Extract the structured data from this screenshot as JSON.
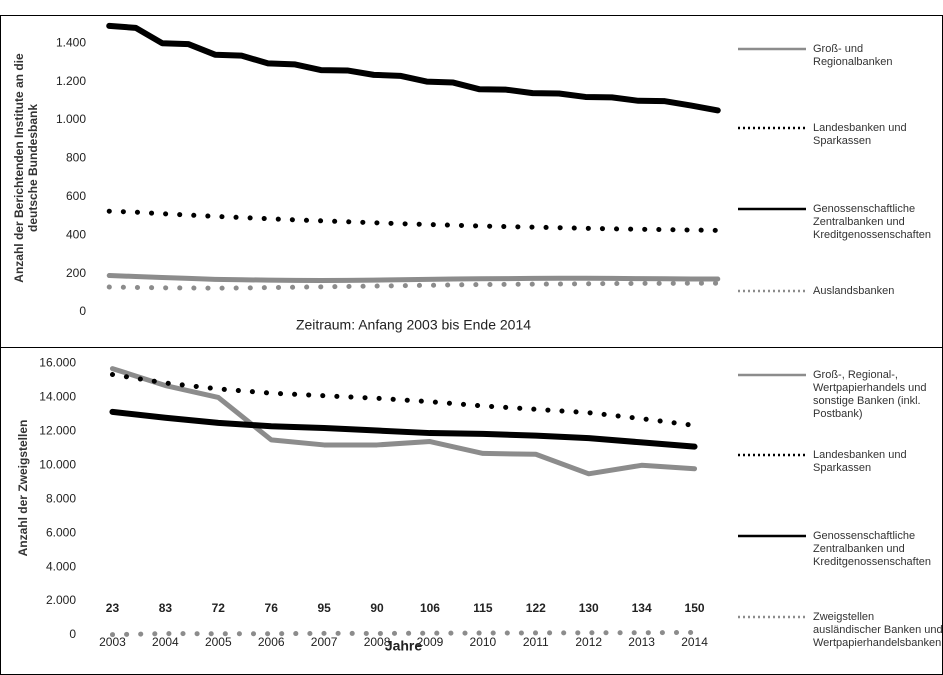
{
  "chart_data": [
    {
      "type": "line",
      "ylabel": "Anzahl der Berichtenden Institute an die deutsche Bundesbank",
      "xlabel": "Zeitraum: Anfang 2003 bis Ende 2014",
      "categories": [
        null,
        null,
        null,
        null,
        null,
        null,
        null,
        null,
        null,
        null,
        null,
        null,
        null,
        null,
        null,
        null,
        null,
        null,
        null,
        null,
        null,
        null,
        null,
        null
      ],
      "ylim": [
        0,
        1500
      ],
      "yticks": [
        0,
        200,
        400,
        600,
        800,
        {
          "value": 1000,
          "label": "1.000"
        },
        {
          "value": 1200,
          "label": "1.200"
        },
        {
          "value": 1400,
          "label": "1.400"
        }
      ],
      "series": [
        {
          "name": "Groß- und Regionalbanken",
          "color": "#8c8c8c",
          "style": "solid",
          "values": [
            190,
            185,
            180,
            175,
            170,
            168,
            166,
            165,
            164,
            165,
            166,
            168,
            170,
            172,
            173,
            174,
            175,
            176,
            176,
            175,
            174,
            173,
            172,
            172
          ]
        },
        {
          "name": "Landesbanken und Sparkassen",
          "color": "#000000",
          "style": "dotted",
          "values": [
            525,
            520,
            512,
            505,
            498,
            492,
            486,
            480,
            475,
            470,
            465,
            460,
            456,
            452,
            448,
            445,
            442,
            439,
            436,
            433,
            431,
            429,
            427,
            425
          ]
        },
        {
          "name": "Genossenschaftliche Zentralbanken und Kreditgenossenschaften",
          "color": "#000000",
          "style": "solid",
          "values": [
            1490,
            1480,
            1400,
            1395,
            1340,
            1335,
            1295,
            1290,
            1260,
            1258,
            1235,
            1230,
            1200,
            1195,
            1160,
            1158,
            1140,
            1138,
            1120,
            1118,
            1100,
            1098,
            1075,
            1050
          ]
        },
        {
          "name": "Auslandsbanken",
          "color": "#8c8c8c",
          "style": "dotted",
          "values": [
            130,
            128,
            126,
            125,
            124,
            125,
            127,
            129,
            131,
            133,
            135,
            137,
            139,
            141,
            143,
            144,
            145,
            146,
            147,
            148,
            149,
            149,
            150,
            150
          ]
        }
      ]
    },
    {
      "type": "line",
      "ylabel": "Anzahl der Zweigstellen",
      "xlabel": "Jahre",
      "categories": [
        "2003",
        "2004",
        "2005",
        "2006",
        "2007",
        "2008",
        "2009",
        "2010",
        "2011",
        "2012",
        "2013",
        "2014"
      ],
      "ylim": [
        0,
        16500
      ],
      "yticks": [
        0,
        {
          "value": 2000,
          "label": "2.000"
        },
        {
          "value": 4000,
          "label": "4.000"
        },
        {
          "value": 6000,
          "label": "6.000"
        },
        {
          "value": 8000,
          "label": "8.000"
        },
        {
          "value": 10000,
          "label": "10.000"
        },
        {
          "value": 12000,
          "label": "12.000"
        },
        {
          "value": 14000,
          "label": "14.000"
        },
        {
          "value": 16000,
          "label": "16.000"
        }
      ],
      "series": [
        {
          "name": "Groß-, Regional-, Wertpapierhandels und sonstige Banken (inkl. Postbank)",
          "color": "#8c8c8c",
          "style": "solid",
          "values": [
            15700,
            14700,
            14000,
            11500,
            11200,
            11200,
            11400,
            10700,
            10650,
            9500,
            10000,
            9800
          ]
        },
        {
          "name": "Landesbanken und Sparkassen",
          "color": "#000000",
          "style": "dotted",
          "values": [
            15350,
            14850,
            14500,
            14250,
            14100,
            13950,
            13750,
            13500,
            13300,
            13100,
            12750,
            12350
          ]
        },
        {
          "name": "Genossenschaftliche Zentralbanken und Kreditgenossenschaften",
          "color": "#000000",
          "style": "solid",
          "values": [
            13150,
            12800,
            12500,
            12300,
            12200,
            12050,
            11900,
            11850,
            11750,
            11600,
            11350,
            11100
          ]
        },
        {
          "name": "Zweigstellen ausländischer Banken und Wertpapierhandelsbanken",
          "color": "#8c8c8c",
          "style": "dotted",
          "show_values": true,
          "values": [
            23,
            83,
            72,
            76,
            95,
            90,
            106,
            115,
            122,
            130,
            134,
            150
          ]
        }
      ]
    }
  ]
}
